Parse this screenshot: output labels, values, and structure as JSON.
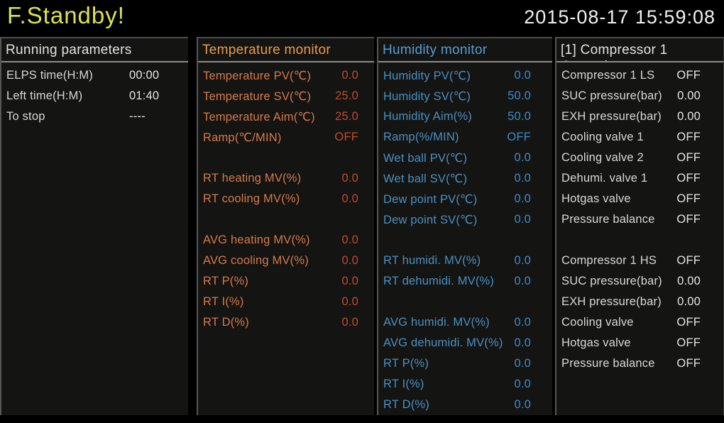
{
  "titlebar": {
    "status": "F.Standby!",
    "datetime": "2015-08-17 15:59:08"
  },
  "colors": {
    "background": "#000000",
    "panel_background": "#141412",
    "status_text": "#dce24f",
    "datetime_text": "#f2f2f2",
    "header_underline": "#8c8c8c",
    "white_text": "#e2e2e2",
    "temperature_header": "#eb9b54",
    "temperature_label": "#d67a4a",
    "temperature_value": "#c14a30",
    "humidity_header": "#579dd1",
    "humidity_label": "#4a90c4",
    "humidity_value": "#3e8bcc"
  },
  "panels": [
    {
      "id": "running-parameters",
      "title": "Running parameters",
      "subtitle": "",
      "theme": "white",
      "rows": [
        {
          "label": "ELPS time(H:M)",
          "value": "00:00"
        },
        {
          "label": "Left time(H:M)",
          "value": "01:40"
        },
        {
          "label": "To stop",
          "value": "----"
        }
      ]
    },
    {
      "id": "temperature-monitor",
      "title": "Temperature monitor",
      "subtitle": "",
      "theme": "orange",
      "rows": [
        {
          "label": "Temperature PV(℃)",
          "value": "0.0"
        },
        {
          "label": "Temperature SV(℃)",
          "value": "25.0"
        },
        {
          "label": "Temperature Aim(℃)",
          "value": "25.0"
        },
        {
          "label": "Ramp(℃/MIN)",
          "value": "OFF"
        },
        {
          "spacer": true
        },
        {
          "label": "RT heating MV(%)",
          "value": "0.0"
        },
        {
          "label": "RT cooling MV(%)",
          "value": "0.0"
        },
        {
          "spacer": true
        },
        {
          "label": "AVG heating MV(%)",
          "value": "0.0"
        },
        {
          "label": "AVG cooling MV(%)",
          "value": "0.0"
        },
        {
          "label": "RT P(%)",
          "value": "0.0"
        },
        {
          "label": "RT I(%)",
          "value": "0.0"
        },
        {
          "label": "RT D(%)",
          "value": "0.0"
        }
      ]
    },
    {
      "id": "humidity-monitor",
      "title": "Humidity monitor",
      "subtitle": "",
      "theme": "blue",
      "rows": [
        {
          "label": "Humidity PV(℃)",
          "value": "0.0"
        },
        {
          "label": "Humidity SV(℃)",
          "value": "50.0"
        },
        {
          "label": "Humidity Aim(%)",
          "value": "50.0"
        },
        {
          "label": "Ramp(%/MIN)",
          "value": "OFF"
        },
        {
          "label": "Wet ball PV(℃)",
          "value": "0.0"
        },
        {
          "label": "Wet ball SV(℃)",
          "value": "0.0"
        },
        {
          "label": "Dew point PV(℃)",
          "value": "0.0"
        },
        {
          "label": "Dew point SV(℃)",
          "value": "0.0"
        },
        {
          "spacer": true
        },
        {
          "label": "RT humidi. MV(%)",
          "value": "0.0"
        },
        {
          "label": "RT dehumidi. MV(%)",
          "value": "0.0"
        },
        {
          "spacer": true
        },
        {
          "label": "AVG humidi. MV(%)",
          "value": "0.0"
        },
        {
          "label": "AVG dehumidi. MV(%)",
          "value": "0.0"
        },
        {
          "label": "RT P(%)",
          "value": "0.0"
        },
        {
          "label": "RT I(%)",
          "value": "0.0"
        },
        {
          "label": "RT D(%)",
          "value": "0.0"
        }
      ]
    },
    {
      "id": "compressor-1-cascade",
      "title": "[1] Compressor 1",
      "subtitle": "Cascade",
      "theme": "white",
      "rows": [
        {
          "label": "Compressor 1 LS",
          "value": "OFF"
        },
        {
          "label": "SUC pressure(bar)",
          "value": "0.00"
        },
        {
          "label": "EXH pressure(bar)",
          "value": "0.00"
        },
        {
          "label": "Cooling valve 1",
          "value": "OFF"
        },
        {
          "label": "Cooling valve 2",
          "value": "OFF"
        },
        {
          "label": "Dehumi. valve 1",
          "value": "OFF"
        },
        {
          "label": "Hotgas valve",
          "value": "OFF"
        },
        {
          "label": "Pressure balance",
          "value": "OFF"
        },
        {
          "spacer": true
        },
        {
          "label": "Compressor 1 HS",
          "value": "OFF"
        },
        {
          "label": "SUC pressure(bar)",
          "value": "0.00"
        },
        {
          "label": "EXH pressure(bar)",
          "value": "0.00"
        },
        {
          "label": "Cooling valve",
          "value": "OFF"
        },
        {
          "label": "Hotgas valve",
          "value": "OFF"
        },
        {
          "label": "Pressure balance",
          "value": "OFF"
        }
      ]
    }
  ]
}
